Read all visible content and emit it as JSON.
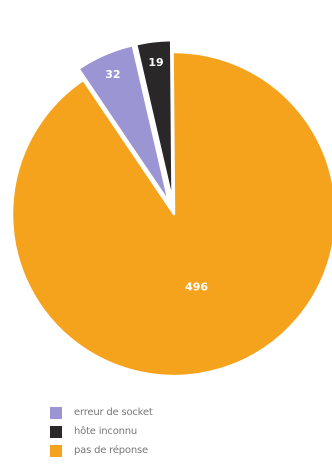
{
  "chart_data": {
    "type": "pie",
    "categories": [
      "erreur de socket",
      "hôte inconnu",
      "pas de réponse"
    ],
    "values": [
      32,
      19,
      496
    ],
    "data_labels": [
      "32",
      "19",
      "496"
    ],
    "colors": [
      "#9b95d4",
      "#2a2728",
      "#f5a21d"
    ],
    "exploded": [
      true,
      true,
      false
    ],
    "title": "",
    "legend_placement": "bottom-left"
  },
  "legend": {
    "items": [
      {
        "label": "erreur de socket",
        "color": "#9b95d4"
      },
      {
        "label": "hôte inconnu",
        "color": "#2a2728"
      },
      {
        "label": "pas de réponse",
        "color": "#f5a21d"
      }
    ]
  }
}
